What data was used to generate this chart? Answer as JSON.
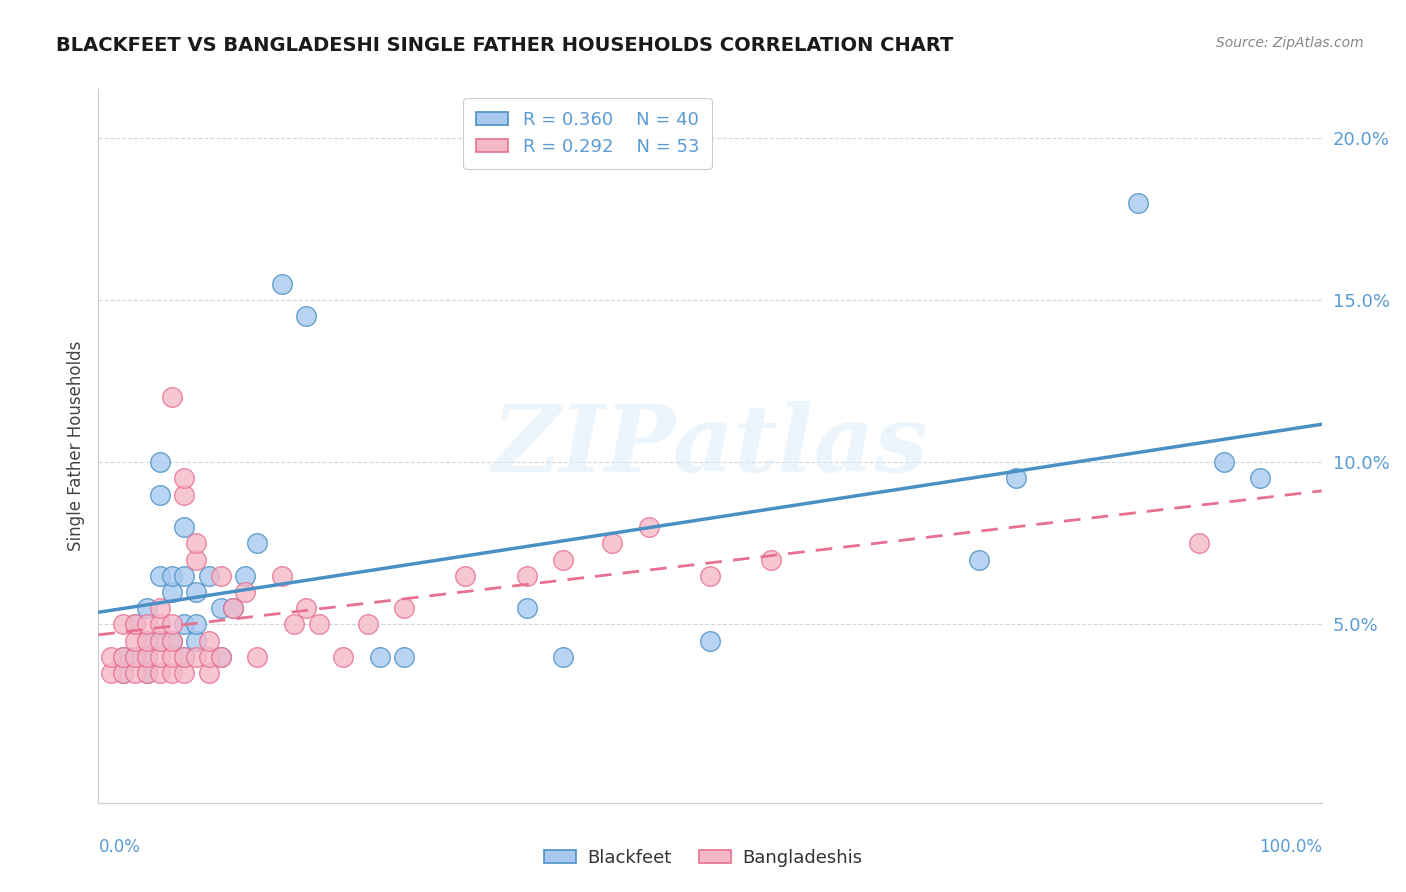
{
  "title": "BLACKFEET VS BANGLADESHI SINGLE FATHER HOUSEHOLDS CORRELATION CHART",
  "source": "Source: ZipAtlas.com",
  "ylabel": "Single Father Households",
  "xlim": [
    0,
    1.0
  ],
  "ylim": [
    -0.005,
    0.215
  ],
  "blackfeet_color": "#a8c8f0",
  "bangladeshi_color": "#f5b8c8",
  "line_color_blue": "#4a90c4",
  "line_color_pink": "#e87090",
  "watermark_text": "ZIPatlas",
  "background_color": "#ffffff",
  "grid_color": "#d0d8e0",
  "blackfeet_x": [
    0.02,
    0.02,
    0.03,
    0.03,
    0.04,
    0.04,
    0.04,
    0.04,
    0.05,
    0.05,
    0.05,
    0.05,
    0.06,
    0.06,
    0.06,
    0.07,
    0.07,
    0.07,
    0.07,
    0.08,
    0.08,
    0.08,
    0.09,
    0.1,
    0.1,
    0.11,
    0.12,
    0.13,
    0.15,
    0.17,
    0.23,
    0.25,
    0.35,
    0.38,
    0.5,
    0.72,
    0.75,
    0.85,
    0.92,
    0.95
  ],
  "blackfeet_y": [
    0.035,
    0.04,
    0.04,
    0.05,
    0.035,
    0.04,
    0.045,
    0.055,
    0.045,
    0.065,
    0.09,
    0.1,
    0.045,
    0.06,
    0.065,
    0.04,
    0.05,
    0.065,
    0.08,
    0.045,
    0.05,
    0.06,
    0.065,
    0.04,
    0.055,
    0.055,
    0.065,
    0.075,
    0.155,
    0.145,
    0.04,
    0.04,
    0.055,
    0.04,
    0.045,
    0.07,
    0.095,
    0.18,
    0.1,
    0.095
  ],
  "bangladeshi_x": [
    0.01,
    0.01,
    0.02,
    0.02,
    0.02,
    0.03,
    0.03,
    0.03,
    0.03,
    0.04,
    0.04,
    0.04,
    0.04,
    0.05,
    0.05,
    0.05,
    0.05,
    0.05,
    0.06,
    0.06,
    0.06,
    0.06,
    0.06,
    0.07,
    0.07,
    0.07,
    0.07,
    0.08,
    0.08,
    0.08,
    0.09,
    0.09,
    0.09,
    0.1,
    0.1,
    0.11,
    0.12,
    0.13,
    0.15,
    0.16,
    0.17,
    0.18,
    0.2,
    0.22,
    0.25,
    0.3,
    0.35,
    0.38,
    0.42,
    0.45,
    0.5,
    0.55,
    0.9
  ],
  "bangladeshi_y": [
    0.035,
    0.04,
    0.035,
    0.04,
    0.05,
    0.035,
    0.04,
    0.045,
    0.05,
    0.035,
    0.04,
    0.045,
    0.05,
    0.035,
    0.04,
    0.045,
    0.05,
    0.055,
    0.035,
    0.04,
    0.045,
    0.05,
    0.12,
    0.035,
    0.04,
    0.09,
    0.095,
    0.04,
    0.07,
    0.075,
    0.035,
    0.04,
    0.045,
    0.04,
    0.065,
    0.055,
    0.06,
    0.04,
    0.065,
    0.05,
    0.055,
    0.05,
    0.04,
    0.05,
    0.055,
    0.065,
    0.065,
    0.07,
    0.075,
    0.08,
    0.065,
    0.07,
    0.075
  ]
}
